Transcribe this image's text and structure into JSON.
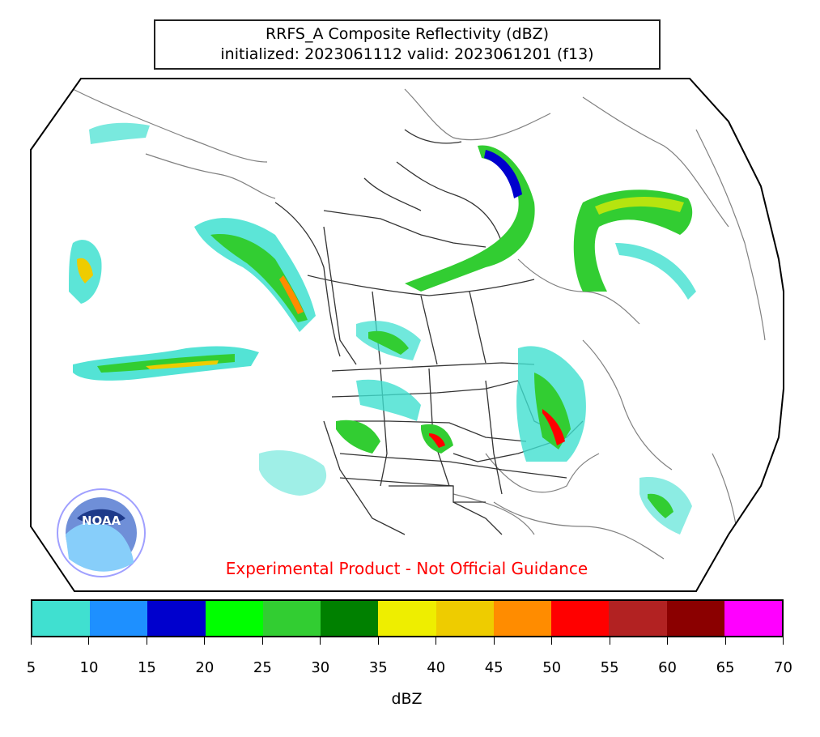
{
  "title": {
    "line1": "RRFS_A Composite Reflectivity (dBZ)",
    "line2": "initialized: 2023061112 valid: 2023061201 (f13)"
  },
  "disclaimer": "Experimental Product - Not Official Guidance",
  "logo": {
    "name": "noaa-logo",
    "text": "NOAA"
  },
  "colorbar": {
    "label": "dBZ",
    "ticks": [
      "5",
      "10",
      "15",
      "20",
      "25",
      "30",
      "35",
      "40",
      "45",
      "50",
      "55",
      "60",
      "65",
      "70"
    ],
    "colors": [
      "#40e0d0",
      "#1e90ff",
      "#0000cd",
      "#00ff00",
      "#32cd32",
      "#008000",
      "#eeee00",
      "#eecc00",
      "#ff8c00",
      "#ff0000",
      "#b22222",
      "#8b0000",
      "#ff00ff"
    ]
  },
  "colors": {
    "coastline": "#808080",
    "borders": "#333333",
    "disclaimer": "#ff0000"
  }
}
